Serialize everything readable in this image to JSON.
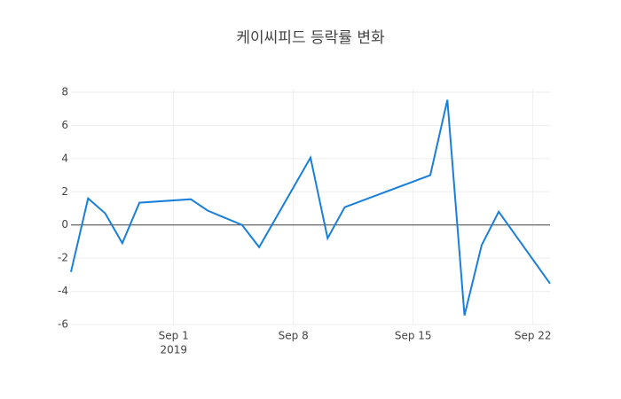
{
  "chart_data": {
    "type": "line",
    "title": "케이씨피드 등락률 변화",
    "x": [
      "2019-08-26",
      "2019-08-27",
      "2019-08-28",
      "2019-08-29",
      "2019-08-30",
      "2019-09-02",
      "2019-09-03",
      "2019-09-05",
      "2019-09-06",
      "2019-09-09",
      "2019-09-10",
      "2019-09-11",
      "2019-09-16",
      "2019-09-17",
      "2019-09-18",
      "2019-09-19",
      "2019-09-20",
      "2019-09-23"
    ],
    "series": [
      {
        "color": "#1a7fd9",
        "values": [
          -2.83,
          1.6,
          0.7,
          -1.1,
          1.34,
          1.55,
          0.86,
          0,
          -1.34,
          4.06,
          -0.8,
          1.07,
          3.0,
          7.54,
          -5.45,
          -1.23,
          0.8,
          -3.53
        ]
      }
    ],
    "xlim": [
      "2019-08-26",
      "2019-09-23"
    ],
    "xticks": [
      {
        "value": "2019-09-01",
        "label": [
          "Sep 1",
          "2019"
        ]
      },
      {
        "value": "2019-09-08",
        "label": [
          "Sep 8"
        ]
      },
      {
        "value": "2019-09-15",
        "label": [
          "Sep 15"
        ]
      },
      {
        "value": "2019-09-22",
        "label": [
          "Sep 22"
        ]
      }
    ],
    "ylim": [
      -6,
      8
    ],
    "yticks": [
      -6,
      -4,
      -2,
      0,
      2,
      4,
      6,
      8
    ],
    "grid": true,
    "zeroline": true
  }
}
